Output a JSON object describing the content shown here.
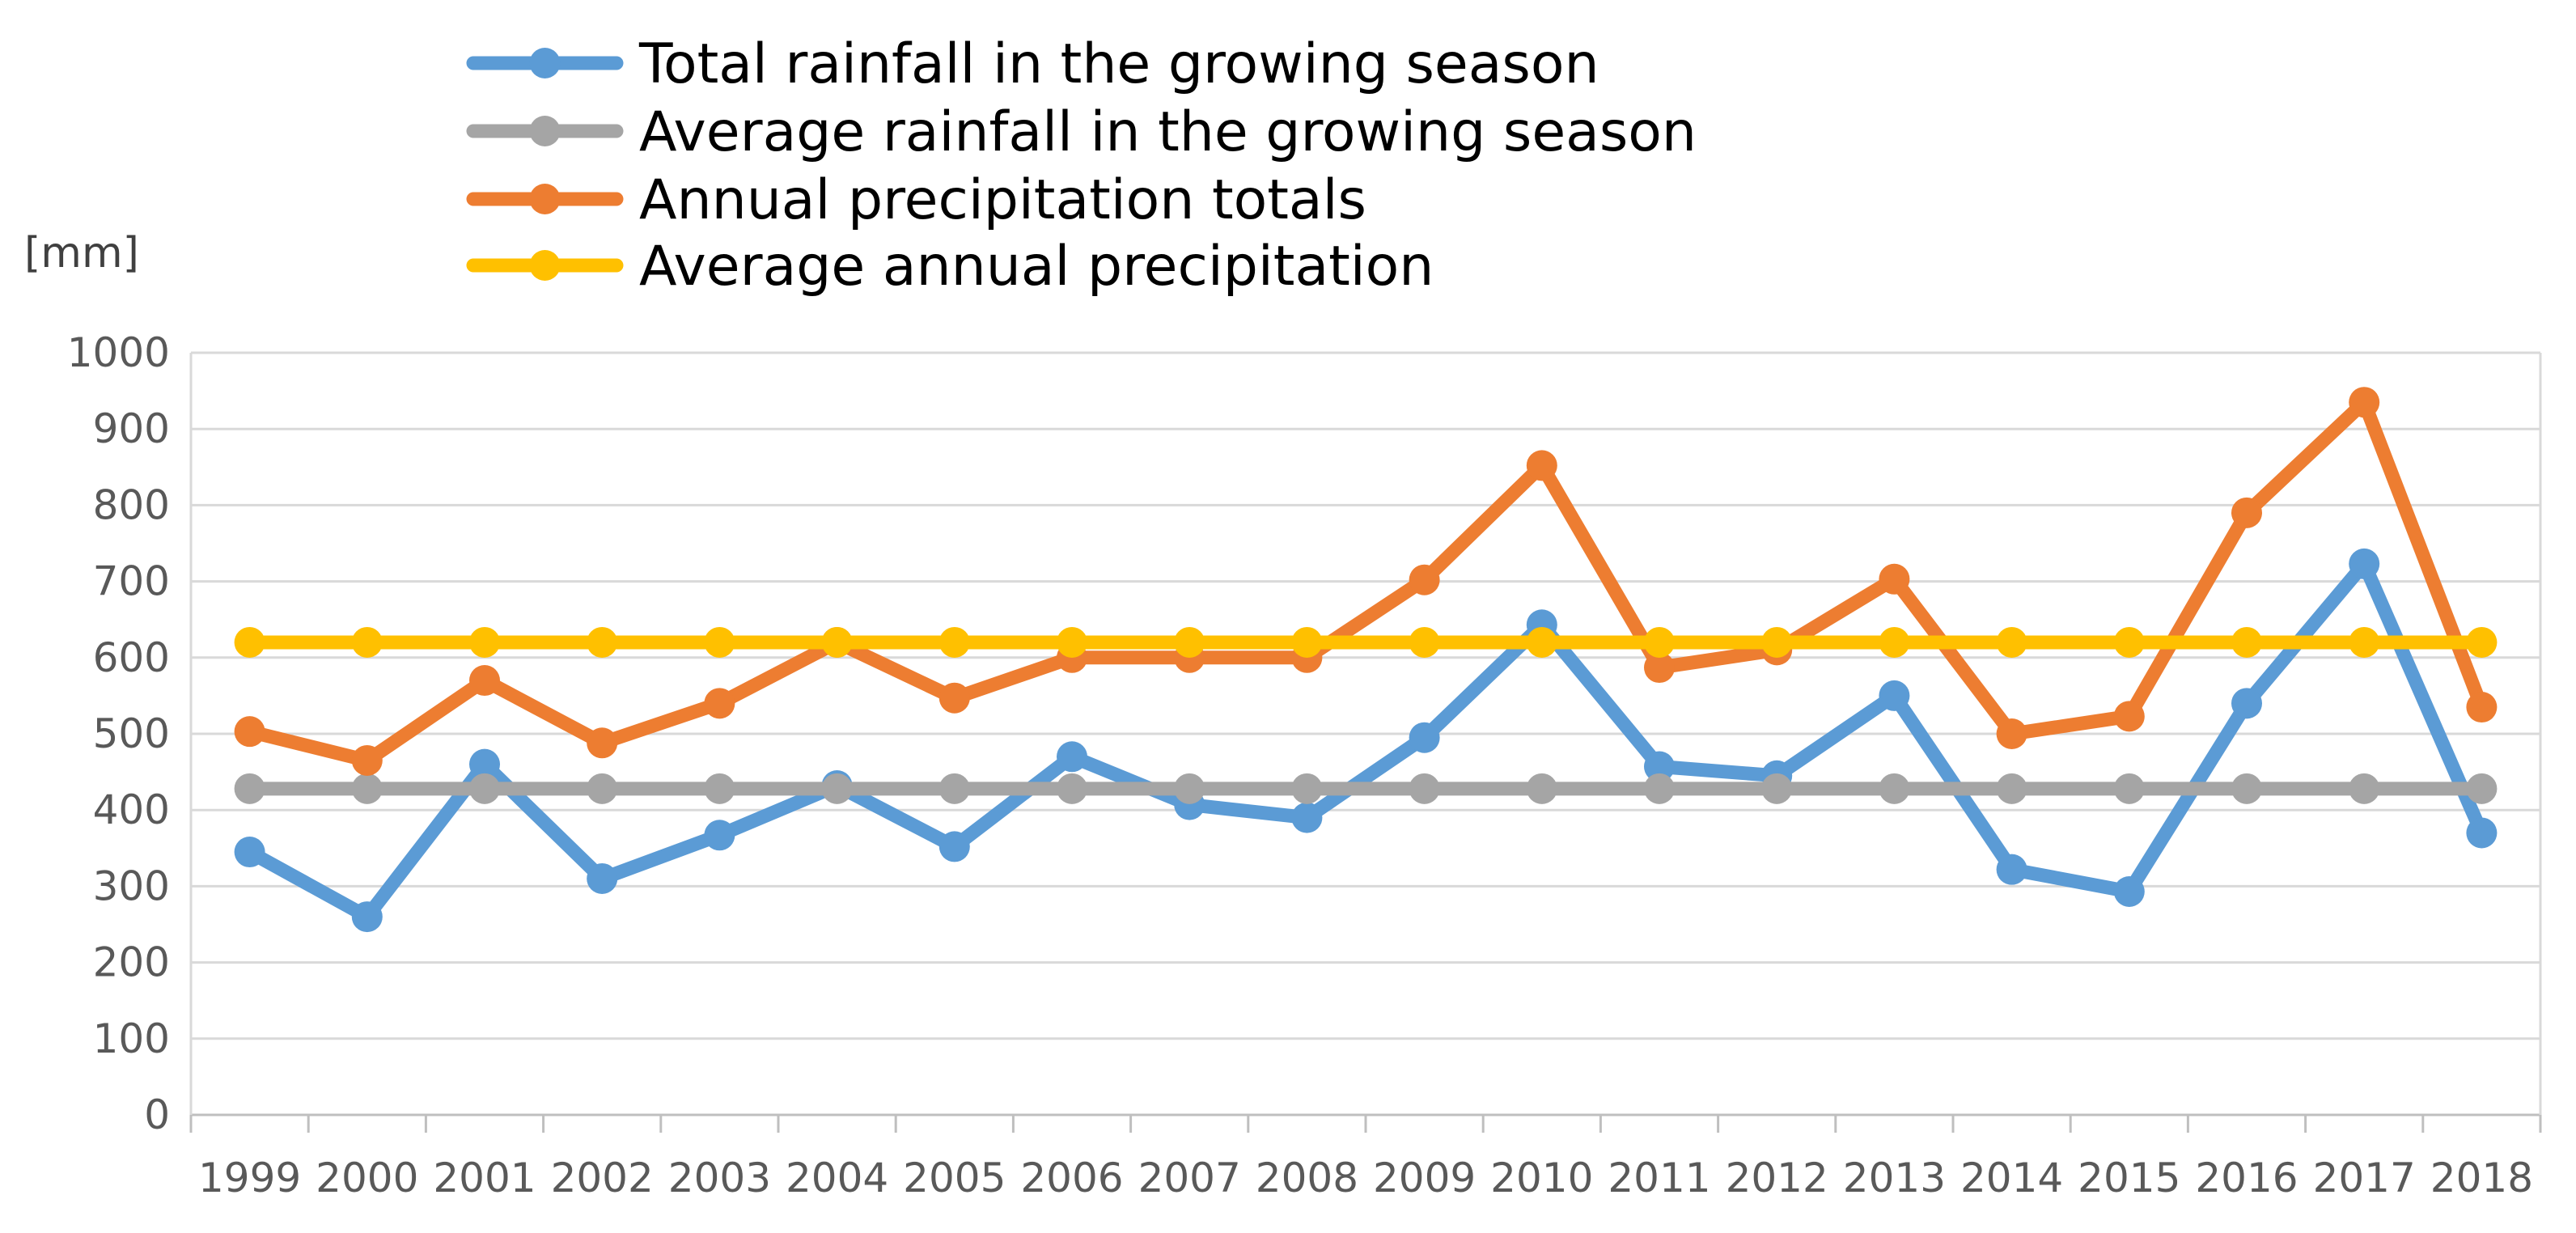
{
  "chart_data": {
    "type": "line",
    "ylabel": "[mm]",
    "xlabel": "",
    "ylim": [
      0,
      1000
    ],
    "yticks": [
      0,
      100,
      200,
      300,
      400,
      500,
      600,
      700,
      800,
      900,
      1000
    ],
    "categories": [
      "1999",
      "2000",
      "2001",
      "2002",
      "2003",
      "2004",
      "2005",
      "2006",
      "2007",
      "2008",
      "2009",
      "2010",
      "2011",
      "2012",
      "2013",
      "2014",
      "2015",
      "2016",
      "2017",
      "2018"
    ],
    "grid": true,
    "legend_position": "top",
    "series": [
      {
        "name": "Total rainfall in the growing season",
        "color": "#5B9BD5",
        "values": [
          345,
          260,
          460,
          310,
          367,
          432,
          352,
          470,
          407,
          390,
          495,
          643,
          457,
          445,
          550,
          322,
          293,
          540,
          723,
          370
        ]
      },
      {
        "name": "Average rainfall in the growing season",
        "color": "#A5A5A5",
        "values": [
          428,
          428,
          428,
          428,
          428,
          428,
          428,
          428,
          428,
          428,
          428,
          428,
          428,
          428,
          428,
          428,
          428,
          428,
          428,
          428
        ]
      },
      {
        "name": "Annual precipitation totals",
        "color": "#ED7D31",
        "values": [
          503,
          465,
          570,
          488,
          540,
          620,
          547,
          600,
          600,
          600,
          702,
          852,
          587,
          610,
          703,
          500,
          523,
          790,
          935,
          535
        ]
      },
      {
        "name": "Average annual precipitation",
        "color": "#FFC000",
        "values": [
          620,
          620,
          620,
          620,
          620,
          620,
          620,
          620,
          620,
          620,
          620,
          620,
          620,
          620,
          620,
          620,
          620,
          620,
          620,
          620
        ]
      }
    ]
  }
}
